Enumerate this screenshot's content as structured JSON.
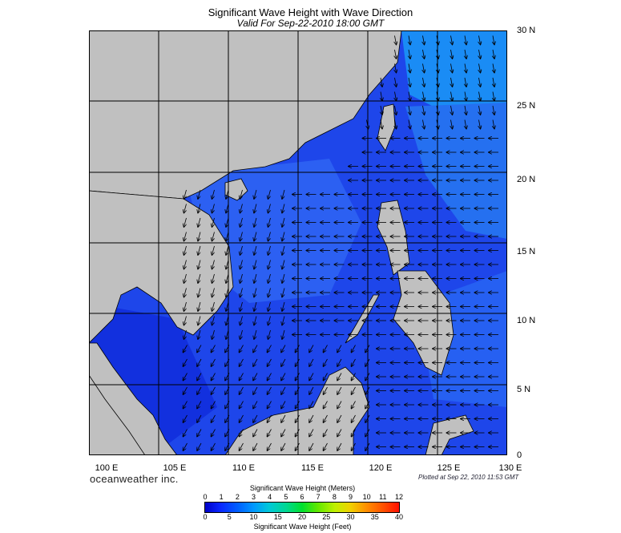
{
  "title": "Significant Wave Height with Wave Direction",
  "subtitle": "Valid For Sep-22-2010 18:00 GMT",
  "lat_labels": [
    "30 N",
    "25 N",
    "20 N",
    "15 N",
    "10 N",
    "5 N",
    "0"
  ],
  "lon_labels": [
    "100 E",
    "105 E",
    "110 E",
    "115 E",
    "120 E",
    "125 E",
    "130 E"
  ],
  "brand": "oceanweather inc.",
  "plotted": "Plotted at Sep 22, 2010 11:53 GMT",
  "legend": {
    "title_meters": "Significant Wave Height (Meters)",
    "title_feet": "Significant Wave Height (Feet)",
    "meter_ticks": [
      "0",
      "1",
      "2",
      "3",
      "4",
      "5",
      "6",
      "7",
      "8",
      "9",
      "10",
      "11",
      "12"
    ],
    "feet_ticks": [
      "0",
      "5",
      "10",
      "15",
      "20",
      "25",
      "30",
      "35",
      "40"
    ]
  },
  "colors": {
    "land": "#c0c0c0",
    "ocean_low": "#1a3ce8",
    "ocean_mid": "#2b5df0",
    "grid": "#000000"
  }
}
